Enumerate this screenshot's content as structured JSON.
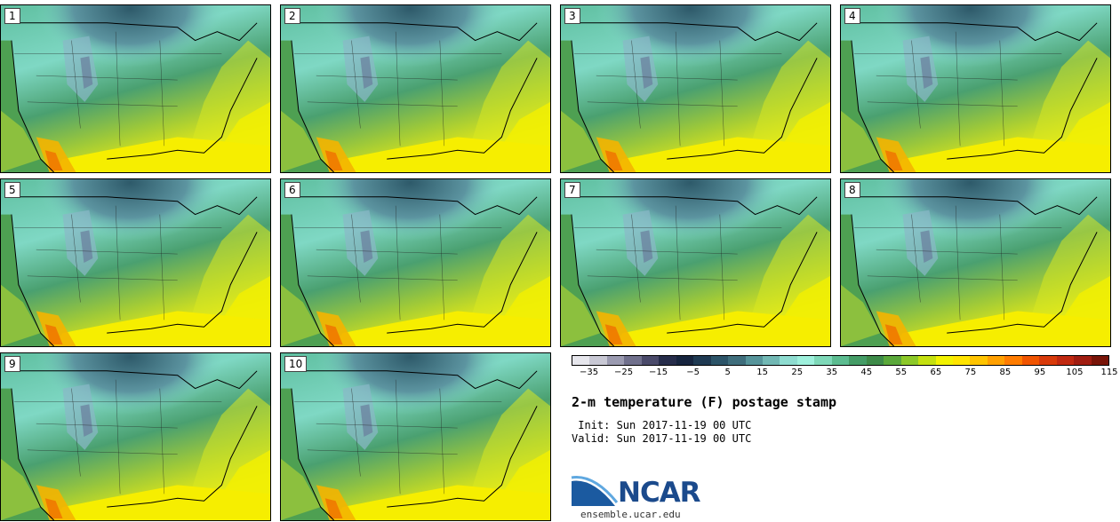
{
  "panels": [
    {
      "label": "1"
    },
    {
      "label": "2"
    },
    {
      "label": "3"
    },
    {
      "label": "4"
    },
    {
      "label": "5"
    },
    {
      "label": "6"
    },
    {
      "label": "7"
    },
    {
      "label": "8"
    },
    {
      "label": "9"
    },
    {
      "label": "10"
    }
  ],
  "legend": {
    "colors": [
      "#e6e6ec",
      "#c8c8d4",
      "#9a9ab0",
      "#70708c",
      "#4a4a6a",
      "#262c4a",
      "#16243e",
      "#1f3a52",
      "#2c5468",
      "#3f6e7c",
      "#56949a",
      "#72b8b4",
      "#8edcd0",
      "#9ef0dc",
      "#7ed8b8",
      "#5cbc90",
      "#449c66",
      "#3d8a48",
      "#5aa83a",
      "#8cc828",
      "#c4e010",
      "#f2f200",
      "#ffe400",
      "#ffc400",
      "#ffa000",
      "#ff7c00",
      "#f05400",
      "#d83a0a",
      "#c02810",
      "#a01c10",
      "#781408"
    ],
    "ticks": [
      "−35",
      "−25",
      "−15",
      "−5",
      "5",
      "15",
      "25",
      "35",
      "45",
      "55",
      "65",
      "75",
      "85",
      "95",
      "105",
      "115"
    ]
  },
  "title": "2-m temperature (F) postage stamp",
  "init_line": " Init: Sun 2017-11-19 00 UTC",
  "valid_line": "Valid: Sun 2017-11-19 00 UTC",
  "logo_text": "NCAR",
  "site": "ensemble.ucar.edu"
}
